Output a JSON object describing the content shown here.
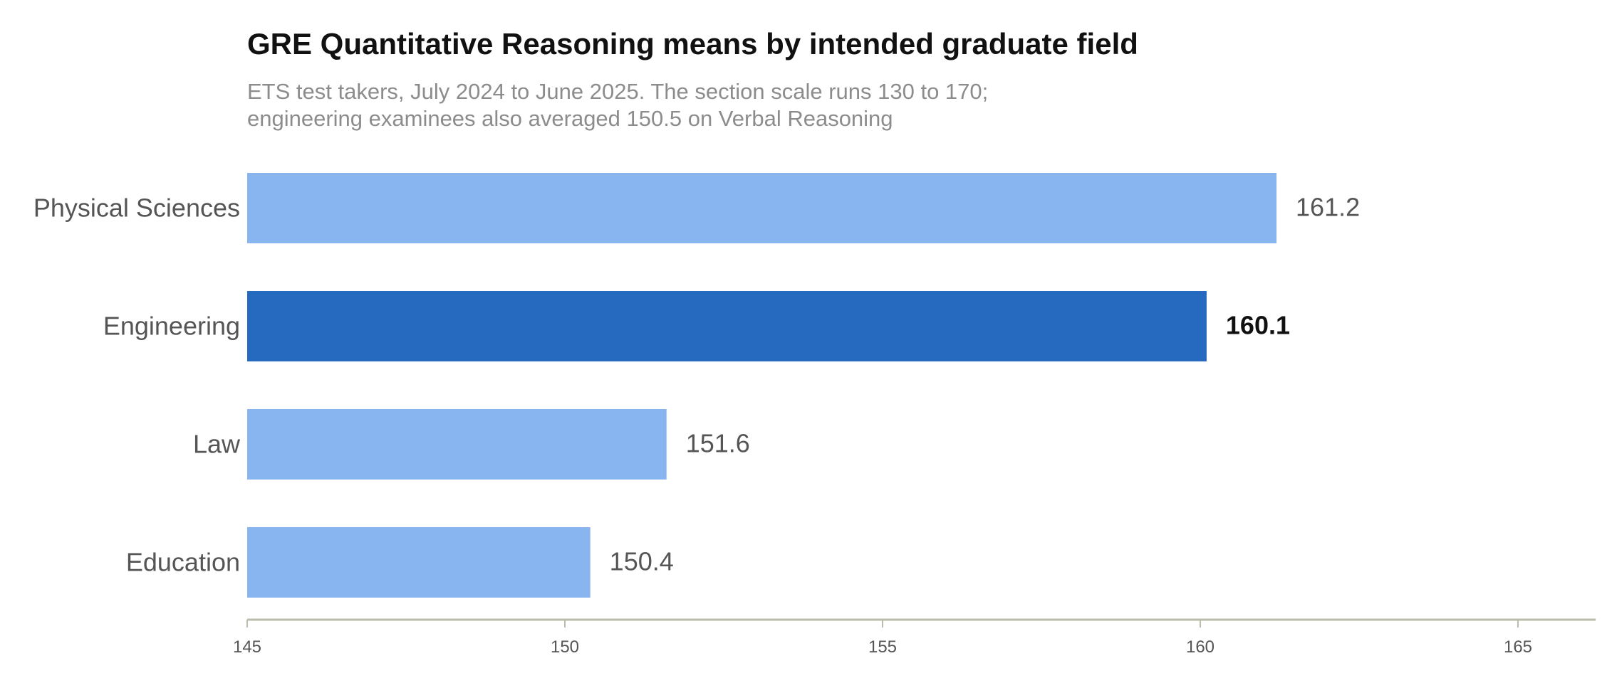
{
  "chart_data": {
    "type": "bar",
    "orientation": "horizontal",
    "title": "GRE Quantitative Reasoning means by intended graduate field",
    "subtitle": [
      "ETS test takers, July 2024 to June 2025. The section scale runs 130 to 170;",
      "engineering examinees also averaged 150.5 on Verbal Reasoning"
    ],
    "categories": [
      "Physical Sciences",
      "Engineering",
      "Law",
      "Education"
    ],
    "values": [
      161.2,
      160.1,
      151.6,
      150.4
    ],
    "value_labels": [
      "161.2",
      "160.1",
      "151.6",
      "150.4"
    ],
    "highlight": "Engineering",
    "xlim": [
      145,
      166
    ],
    "xticks": [
      145,
      150,
      155,
      160,
      165
    ],
    "xtick_labels": [
      "145",
      "150",
      "155",
      "160",
      "165"
    ],
    "xlabel": "",
    "ylabel": "",
    "grid": false,
    "legend": "none",
    "colors": {
      "bar": "#88b5ef",
      "highlight": "#266abf",
      "axis": "#bbbbaa"
    }
  }
}
